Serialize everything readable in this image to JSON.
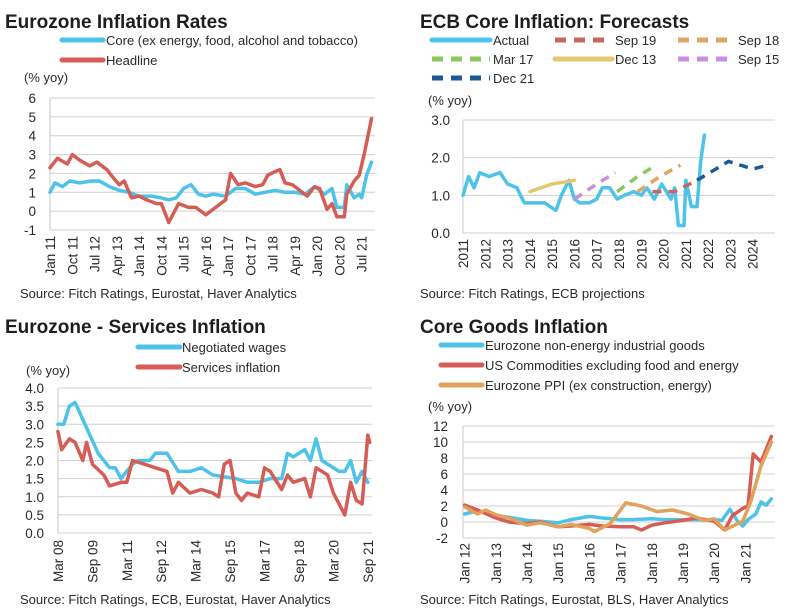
{
  "colors": {
    "blue": "#4ec3ea",
    "red": "#d55d55",
    "orange": "#e1a25c",
    "green": "#8cc75c",
    "yellow": "#e6c86c",
    "purple": "#c690df",
    "darkblue": "#1d5a93",
    "redDash": "#c8675d",
    "orangeDash": "#dfa562"
  },
  "chart_data": [
    {
      "type": "line",
      "title": "Eurozone Inflation Rates",
      "ylabel": "(% yoy)",
      "source": "Source: Fitch Ratings, Eurostat, Haver Analytics",
      "ylim": [
        -1,
        6
      ],
      "yticks": [
        "6",
        "5",
        "4",
        "3",
        "2",
        "1",
        "0",
        "-1"
      ],
      "ytick_values": [
        6,
        5,
        4,
        3,
        2,
        1,
        0,
        -1
      ],
      "xticks": [
        "Jan 11",
        "Oct 11",
        "Jul 12",
        "Apr 13",
        "Jan 14",
        "Oct 14",
        "Jul 15",
        "Apr 16",
        "Jan 17",
        "Oct 17",
        "Jul 18",
        "Apr 19",
        "Jan 20",
        "Oct 20",
        "Jul 21"
      ],
      "xtick_dates": [
        "2011-01",
        "2011-10",
        "2012-07",
        "2013-04",
        "2014-01",
        "2014-10",
        "2015-07",
        "2016-04",
        "2017-01",
        "2017-10",
        "2018-07",
        "2019-04",
        "2020-01",
        "2020-10",
        "2021-07"
      ],
      "grid": true,
      "legend": "top",
      "series": [
        {
          "name": "Core (ex energy, food, alcohol and tobacco)",
          "color": "blue",
          "dash": false,
          "x": [
            "2011-01",
            "2011-03",
            "2011-06",
            "2011-09",
            "2012-01",
            "2012-06",
            "2012-09",
            "2013-01",
            "2013-05",
            "2013-09",
            "2014-01",
            "2014-06",
            "2014-10",
            "2015-01",
            "2015-04",
            "2015-07",
            "2015-10",
            "2016-01",
            "2016-04",
            "2016-07",
            "2016-12",
            "2017-04",
            "2017-08",
            "2017-12",
            "2018-04",
            "2018-08",
            "2018-12",
            "2019-04",
            "2019-08",
            "2019-12",
            "2020-04",
            "2020-07",
            "2020-09",
            "2020-12",
            "2021-01",
            "2021-04",
            "2021-06",
            "2021-07",
            "2021-09",
            "2021-11"
          ],
          "y": [
            1.0,
            1.5,
            1.3,
            1.6,
            1.5,
            1.6,
            1.6,
            1.3,
            1.1,
            1.0,
            0.8,
            0.8,
            0.7,
            0.6,
            0.7,
            1.2,
            1.4,
            0.9,
            0.8,
            0.9,
            0.8,
            1.2,
            1.2,
            0.9,
            1.0,
            1.1,
            1.0,
            1.0,
            0.9,
            1.3,
            0.9,
            1.2,
            0.2,
            0.2,
            1.4,
            0.7,
            0.9,
            0.7,
            1.9,
            2.6
          ]
        },
        {
          "name": "Headline",
          "color": "red",
          "dash": false,
          "x": [
            "2011-01",
            "2011-04",
            "2011-08",
            "2011-10",
            "2012-01",
            "2012-05",
            "2012-08",
            "2012-12",
            "2013-03",
            "2013-05",
            "2013-07",
            "2013-10",
            "2014-01",
            "2014-04",
            "2014-08",
            "2014-10",
            "2015-01",
            "2015-05",
            "2015-09",
            "2015-12",
            "2016-04",
            "2016-08",
            "2016-12",
            "2017-02",
            "2017-05",
            "2017-08",
            "2017-12",
            "2018-03",
            "2018-05",
            "2018-08",
            "2018-10",
            "2018-12",
            "2019-03",
            "2019-05",
            "2019-09",
            "2019-12",
            "2020-02",
            "2020-05",
            "2020-07",
            "2020-09",
            "2020-12",
            "2021-01",
            "2021-04",
            "2021-06",
            "2021-08",
            "2021-11"
          ],
          "y": [
            2.3,
            2.8,
            2.5,
            3.0,
            2.7,
            2.4,
            2.6,
            2.2,
            1.7,
            1.4,
            1.6,
            0.7,
            0.8,
            0.6,
            0.4,
            0.4,
            -0.6,
            0.4,
            0.2,
            0.2,
            -0.2,
            0.2,
            0.6,
            2.0,
            1.4,
            1.5,
            1.3,
            1.4,
            1.9,
            2.1,
            2.2,
            1.5,
            1.4,
            1.2,
            0.8,
            1.3,
            1.2,
            0.1,
            0.4,
            -0.3,
            -0.3,
            0.9,
            1.6,
            1.9,
            3.0,
            4.9
          ]
        }
      ]
    },
    {
      "type": "line",
      "title": "ECB Core Inflation: Forecasts",
      "ylabel": "(% yoy)",
      "source": "Source: Fitch Ratings, ECB projections",
      "ylim": [
        0,
        3
      ],
      "yticks": [
        "3.0",
        "2.0",
        "1.0",
        "0.0"
      ],
      "ytick_values": [
        3,
        2,
        1,
        0
      ],
      "xticks": [
        "2011",
        "2012",
        "2013",
        "2014",
        "2015",
        "2016",
        "2017",
        "2018",
        "2019",
        "2020",
        "2021",
        "2022",
        "2023",
        "2024"
      ],
      "xtick_dates": [
        "2011-01",
        "2012-01",
        "2013-01",
        "2014-01",
        "2015-01",
        "2016-01",
        "2017-01",
        "2018-01",
        "2019-01",
        "2020-01",
        "2021-01",
        "2022-01",
        "2023-01",
        "2024-01"
      ],
      "grid": true,
      "legend": "top",
      "series": [
        {
          "name": "Actual",
          "color": "blue",
          "dash": false,
          "x": [
            "2011-01",
            "2011-04",
            "2011-07",
            "2011-10",
            "2012-03",
            "2012-09",
            "2013-01",
            "2013-06",
            "2013-10",
            "2014-03",
            "2014-09",
            "2015-03",
            "2015-06",
            "2015-10",
            "2016-01",
            "2016-04",
            "2016-09",
            "2017-01",
            "2017-04",
            "2017-08",
            "2017-12",
            "2018-04",
            "2018-09",
            "2019-01",
            "2019-04",
            "2019-08",
            "2019-12",
            "2020-05",
            "2020-07",
            "2020-09",
            "2020-12",
            "2021-01",
            "2021-04",
            "2021-07",
            "2021-09",
            "2021-11"
          ],
          "y": [
            1.0,
            1.5,
            1.2,
            1.6,
            1.5,
            1.6,
            1.3,
            1.2,
            0.8,
            0.8,
            0.8,
            0.6,
            1.0,
            1.4,
            0.9,
            0.8,
            0.8,
            0.9,
            1.2,
            1.2,
            0.9,
            1.0,
            1.1,
            1.0,
            1.2,
            0.9,
            1.3,
            0.9,
            1.2,
            0.2,
            0.2,
            1.4,
            0.7,
            0.7,
            1.9,
            2.6
          ]
        },
        {
          "name": "Sep 19",
          "color": "redDash",
          "dash": true,
          "x": [
            "2019-07",
            "2020-07",
            "2021-07"
          ],
          "y": [
            1.1,
            1.1,
            1.4
          ]
        },
        {
          "name": "Sep 18",
          "color": "orangeDash",
          "dash": true,
          "x": [
            "2018-11",
            "2019-11",
            "2020-10"
          ],
          "y": [
            1.1,
            1.5,
            1.8
          ]
        },
        {
          "name": "Mar 17",
          "color": "green",
          "dash": true,
          "x": [
            "2017-12",
            "2018-11",
            "2019-09"
          ],
          "y": [
            1.1,
            1.5,
            1.8
          ]
        },
        {
          "name": "Dec 13",
          "color": "yellow",
          "dash": false,
          "x": [
            "2014-01",
            "2015-01",
            "2016-01"
          ],
          "y": [
            1.1,
            1.3,
            1.4
          ]
        },
        {
          "name": "Sep 15",
          "color": "purple",
          "dash": true,
          "x": [
            "2016-01",
            "2017-01",
            "2017-11"
          ],
          "y": [
            0.9,
            1.3,
            1.6
          ]
        },
        {
          "name": "Dec 21",
          "color": "darkblue",
          "dash": true,
          "x": [
            "2021-07",
            "2022-12",
            "2024-01",
            "2024-09"
          ],
          "y": [
            1.4,
            1.9,
            1.7,
            1.8
          ]
        }
      ]
    },
    {
      "type": "line",
      "title": "Eurozone -  Services Inflation",
      "ylabel": "(% yoy)",
      "source": "Source: Fitch Ratings, ECB, Eurostat, Haver Analytics",
      "ylim": [
        0,
        4
      ],
      "yticks": [
        "4.0",
        "3.5",
        "3.0",
        "2.5",
        "2.0",
        "1.5",
        "1.0",
        "0.5",
        "0.0"
      ],
      "ytick_values": [
        4,
        3.5,
        3,
        2.5,
        2,
        1.5,
        1,
        0.5,
        0
      ],
      "xticks": [
        "Mar 08",
        "Sep 09",
        "Mar 11",
        "Sep 12",
        "Mar 14",
        "Sep 15",
        "Mar 17",
        "Sep 18",
        "Mar 20",
        "Sep 21"
      ],
      "xtick_dates": [
        "2008-03",
        "2009-09",
        "2011-03",
        "2012-09",
        "2014-03",
        "2015-09",
        "2017-03",
        "2018-09",
        "2020-03",
        "2021-09"
      ],
      "grid": true,
      "legend": "top",
      "series": [
        {
          "name": "Negotiated wages",
          "color": "blue",
          "dash": false,
          "x": [
            "2008-03",
            "2008-06",
            "2008-09",
            "2008-12",
            "2009-06",
            "2009-12",
            "2010-06",
            "2010-09",
            "2010-12",
            "2011-06",
            "2011-09",
            "2012-03",
            "2012-06",
            "2012-12",
            "2013-06",
            "2013-12",
            "2014-06",
            "2014-12",
            "2015-06",
            "2015-12",
            "2016-06",
            "2016-12",
            "2017-06",
            "2017-12",
            "2018-03",
            "2018-06",
            "2018-12",
            "2019-03",
            "2019-06",
            "2019-09",
            "2019-12",
            "2020-06",
            "2020-09",
            "2020-12",
            "2021-03",
            "2021-06",
            "2021-09"
          ],
          "y": [
            3.0,
            3.0,
            3.5,
            3.6,
            2.9,
            2.2,
            1.8,
            1.8,
            1.5,
            1.9,
            2.0,
            2.0,
            2.2,
            2.2,
            1.7,
            1.7,
            1.8,
            1.6,
            1.55,
            1.5,
            1.4,
            1.4,
            1.5,
            1.5,
            2.2,
            2.1,
            2.3,
            2.0,
            2.6,
            2.0,
            1.9,
            1.7,
            1.7,
            2.0,
            1.4,
            1.7,
            1.4
          ]
        },
        {
          "name": "Services inflation",
          "color": "red",
          "dash": false,
          "x": [
            "2008-03",
            "2008-05",
            "2008-09",
            "2008-12",
            "2009-04",
            "2009-06",
            "2009-09",
            "2010-03",
            "2010-06",
            "2010-12",
            "2011-03",
            "2011-06",
            "2011-12",
            "2012-06",
            "2012-12",
            "2013-03",
            "2013-06",
            "2013-12",
            "2014-06",
            "2014-12",
            "2015-03",
            "2015-06",
            "2015-09",
            "2015-12",
            "2016-03",
            "2016-06",
            "2016-12",
            "2017-03",
            "2017-06",
            "2017-12",
            "2018-03",
            "2018-06",
            "2018-12",
            "2019-03",
            "2019-06",
            "2019-12",
            "2020-03",
            "2020-09",
            "2020-12",
            "2021-03",
            "2021-06",
            "2021-09",
            "2021-10"
          ],
          "y": [
            2.8,
            2.3,
            2.6,
            2.5,
            2.0,
            2.5,
            1.9,
            1.6,
            1.3,
            1.4,
            1.4,
            2.0,
            1.9,
            1.8,
            1.7,
            1.1,
            1.4,
            1.1,
            1.2,
            1.1,
            1.0,
            1.9,
            2.0,
            1.1,
            0.9,
            1.1,
            1.0,
            1.8,
            1.7,
            1.2,
            1.6,
            1.4,
            1.5,
            1.0,
            1.8,
            1.6,
            1.1,
            0.5,
            1.4,
            0.9,
            0.8,
            2.7,
            2.5
          ]
        }
      ]
    },
    {
      "type": "line",
      "title": "Core Goods Inflation",
      "ylabel": "(% yoy)",
      "source": "Source: Fitch Ratings, Eurostat, BLS, Haver Analytics",
      "ylim": [
        -2,
        12
      ],
      "yticks": [
        "12",
        "10",
        "8",
        "6",
        "4",
        "2",
        "0",
        "-2"
      ],
      "ytick_values": [
        12,
        10,
        8,
        6,
        4,
        2,
        0,
        -2
      ],
      "xticks": [
        "Jan 12",
        "Jan 13",
        "Jan 14",
        "Jan 15",
        "Jan 16",
        "Jan 17",
        "Jan 18",
        "Jan 19",
        "Jan 20",
        "Jan 21"
      ],
      "xtick_dates": [
        "2012-01",
        "2013-01",
        "2014-01",
        "2015-01",
        "2016-01",
        "2017-01",
        "2018-01",
        "2019-01",
        "2020-01",
        "2021-01"
      ],
      "grid": true,
      "legend": "top",
      "series": [
        {
          "name": "Eurozone non-energy industrial goods",
          "color": "blue",
          "dash": false,
          "x": [
            "2012-01",
            "2012-06",
            "2013-01",
            "2013-06",
            "2014-01",
            "2014-06",
            "2015-01",
            "2015-06",
            "2016-01",
            "2016-06",
            "2017-01",
            "2017-06",
            "2018-01",
            "2018-06",
            "2019-01",
            "2019-06",
            "2020-01",
            "2020-04",
            "2020-07",
            "2020-10",
            "2020-12",
            "2021-02",
            "2021-05",
            "2021-07",
            "2021-09",
            "2021-11"
          ],
          "y": [
            1.0,
            1.4,
            0.8,
            0.6,
            0.2,
            0.1,
            -0.1,
            0.3,
            0.7,
            0.5,
            0.3,
            0.3,
            0.4,
            0.3,
            0.3,
            0.3,
            0.3,
            0.2,
            1.6,
            0.1,
            -0.5,
            0.3,
            1.0,
            2.5,
            2.1,
            2.9
          ]
        },
        {
          "name": "US Commodities excluding food and energy",
          "color": "red",
          "dash": false,
          "x": [
            "2012-01",
            "2012-06",
            "2013-01",
            "2013-06",
            "2014-01",
            "2014-06",
            "2015-01",
            "2015-06",
            "2016-01",
            "2016-06",
            "2017-01",
            "2017-06",
            "2017-09",
            "2018-01",
            "2018-06",
            "2019-01",
            "2019-06",
            "2020-01",
            "2020-05",
            "2020-08",
            "2020-12",
            "2021-02",
            "2021-04",
            "2021-07",
            "2021-11"
          ],
          "y": [
            2.1,
            1.5,
            0.5,
            0.0,
            -0.2,
            0.0,
            -0.6,
            -0.5,
            -0.3,
            -0.5,
            -0.6,
            -0.6,
            -1.0,
            -0.4,
            -0.1,
            0.2,
            0.5,
            0.1,
            -1.0,
            0.8,
            1.7,
            2.0,
            8.5,
            7.5,
            10.7
          ]
        },
        {
          "name": "Eurozone PPI (ex construction, energy)",
          "color": "orange",
          "dash": false,
          "x": [
            "2012-01",
            "2012-06",
            "2012-09",
            "2013-01",
            "2013-06",
            "2014-01",
            "2014-06",
            "2015-01",
            "2015-06",
            "2016-01",
            "2016-03",
            "2016-09",
            "2017-03",
            "2017-09",
            "2018-03",
            "2018-09",
            "2019-03",
            "2019-09",
            "2020-01",
            "2020-05",
            "2020-12",
            "2021-03",
            "2021-07",
            "2021-11"
          ],
          "y": [
            1.9,
            1.0,
            1.5,
            0.9,
            0.5,
            -0.4,
            -0.1,
            -0.6,
            -0.3,
            -0.8,
            -1.2,
            -0.2,
            2.4,
            2.0,
            1.3,
            1.5,
            1.0,
            0.2,
            0.4,
            -1.0,
            0.1,
            2.5,
            7.0,
            10.0
          ]
        }
      ]
    }
  ]
}
